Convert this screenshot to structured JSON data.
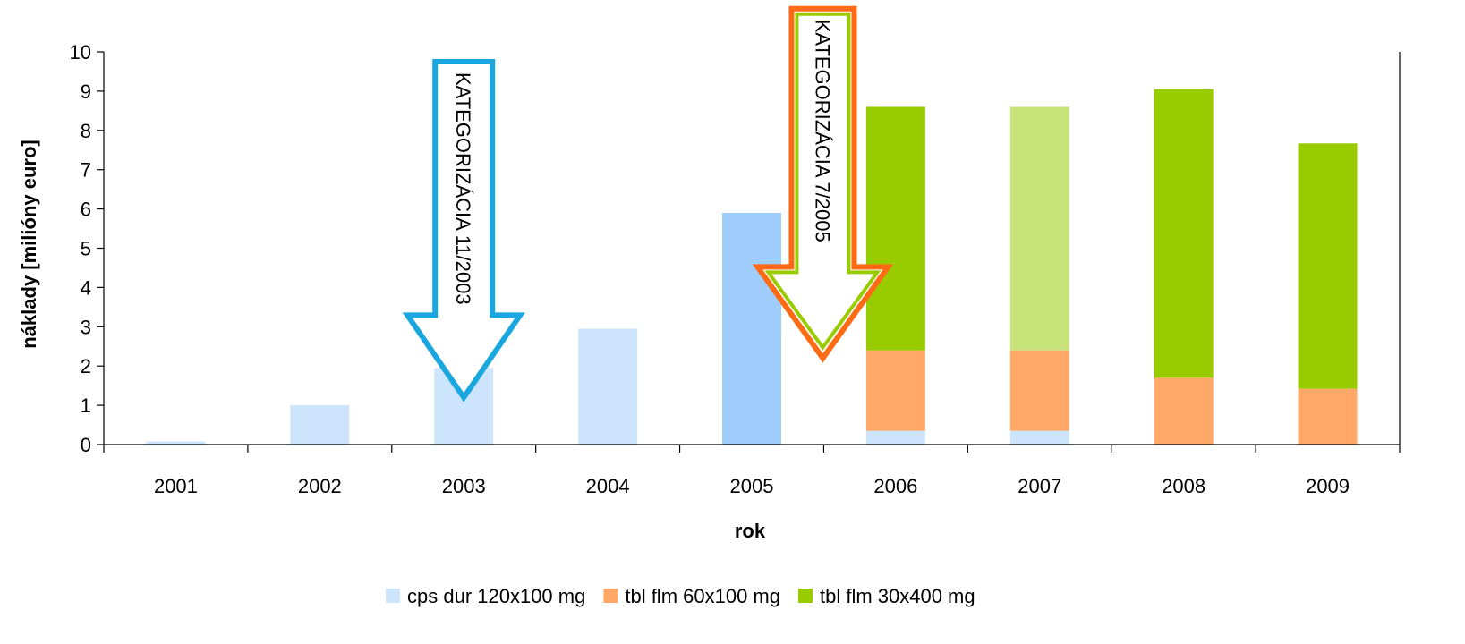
{
  "chart_data": {
    "type": "bar",
    "stacked": true,
    "categories": [
      "2001",
      "2002",
      "2003",
      "2004",
      "2005",
      "2006",
      "2007",
      "2008",
      "2009"
    ],
    "series": [
      {
        "name": "cps dur 120x100 mg",
        "color": "#cce4fc",
        "values": [
          0.08,
          1.0,
          1.95,
          2.95,
          5.9,
          0.35,
          0.35,
          0,
          0
        ]
      },
      {
        "name": "tbl flm 60x100 mg",
        "color": "#ffa868",
        "values": [
          0,
          0,
          0,
          0,
          0,
          2.05,
          2.05,
          1.7,
          1.42
        ]
      },
      {
        "name": "tbl flm 30x400 mg",
        "color": "#99cc00",
        "values": [
          0,
          0,
          0,
          0,
          0,
          6.2,
          6.2,
          7.35,
          6.25
        ]
      }
    ],
    "highlight_colors": {
      "2005": [
        "#9fcdfc",
        null,
        null
      ],
      "2007": [
        null,
        null,
        "#c8e27a"
      ]
    },
    "xlabel": "rok",
    "ylabel": "náklady [milióny euro]",
    "ylim": [
      0,
      10
    ],
    "yticks": [
      "0",
      "1",
      "2",
      "3",
      "4",
      "5",
      "6",
      "7",
      "8",
      "9",
      "10"
    ],
    "grid": false,
    "legend_position": "bottom",
    "annotations": [
      {
        "text": "KATEGORIZÁCIA 11/2003",
        "type": "down-arrow",
        "at_category": "2003",
        "tip_value": 1.2,
        "top_value": 9.75,
        "outline": [
          "#1aa7e0"
        ]
      },
      {
        "text": "KATEGORIZÁCIA 7/2005",
        "type": "down-arrow",
        "at_category": "2005/2006",
        "tip_value": 2.2,
        "top_value": 11.1,
        "outline": [
          "#ff6a14",
          "#99cc00"
        ]
      }
    ]
  }
}
